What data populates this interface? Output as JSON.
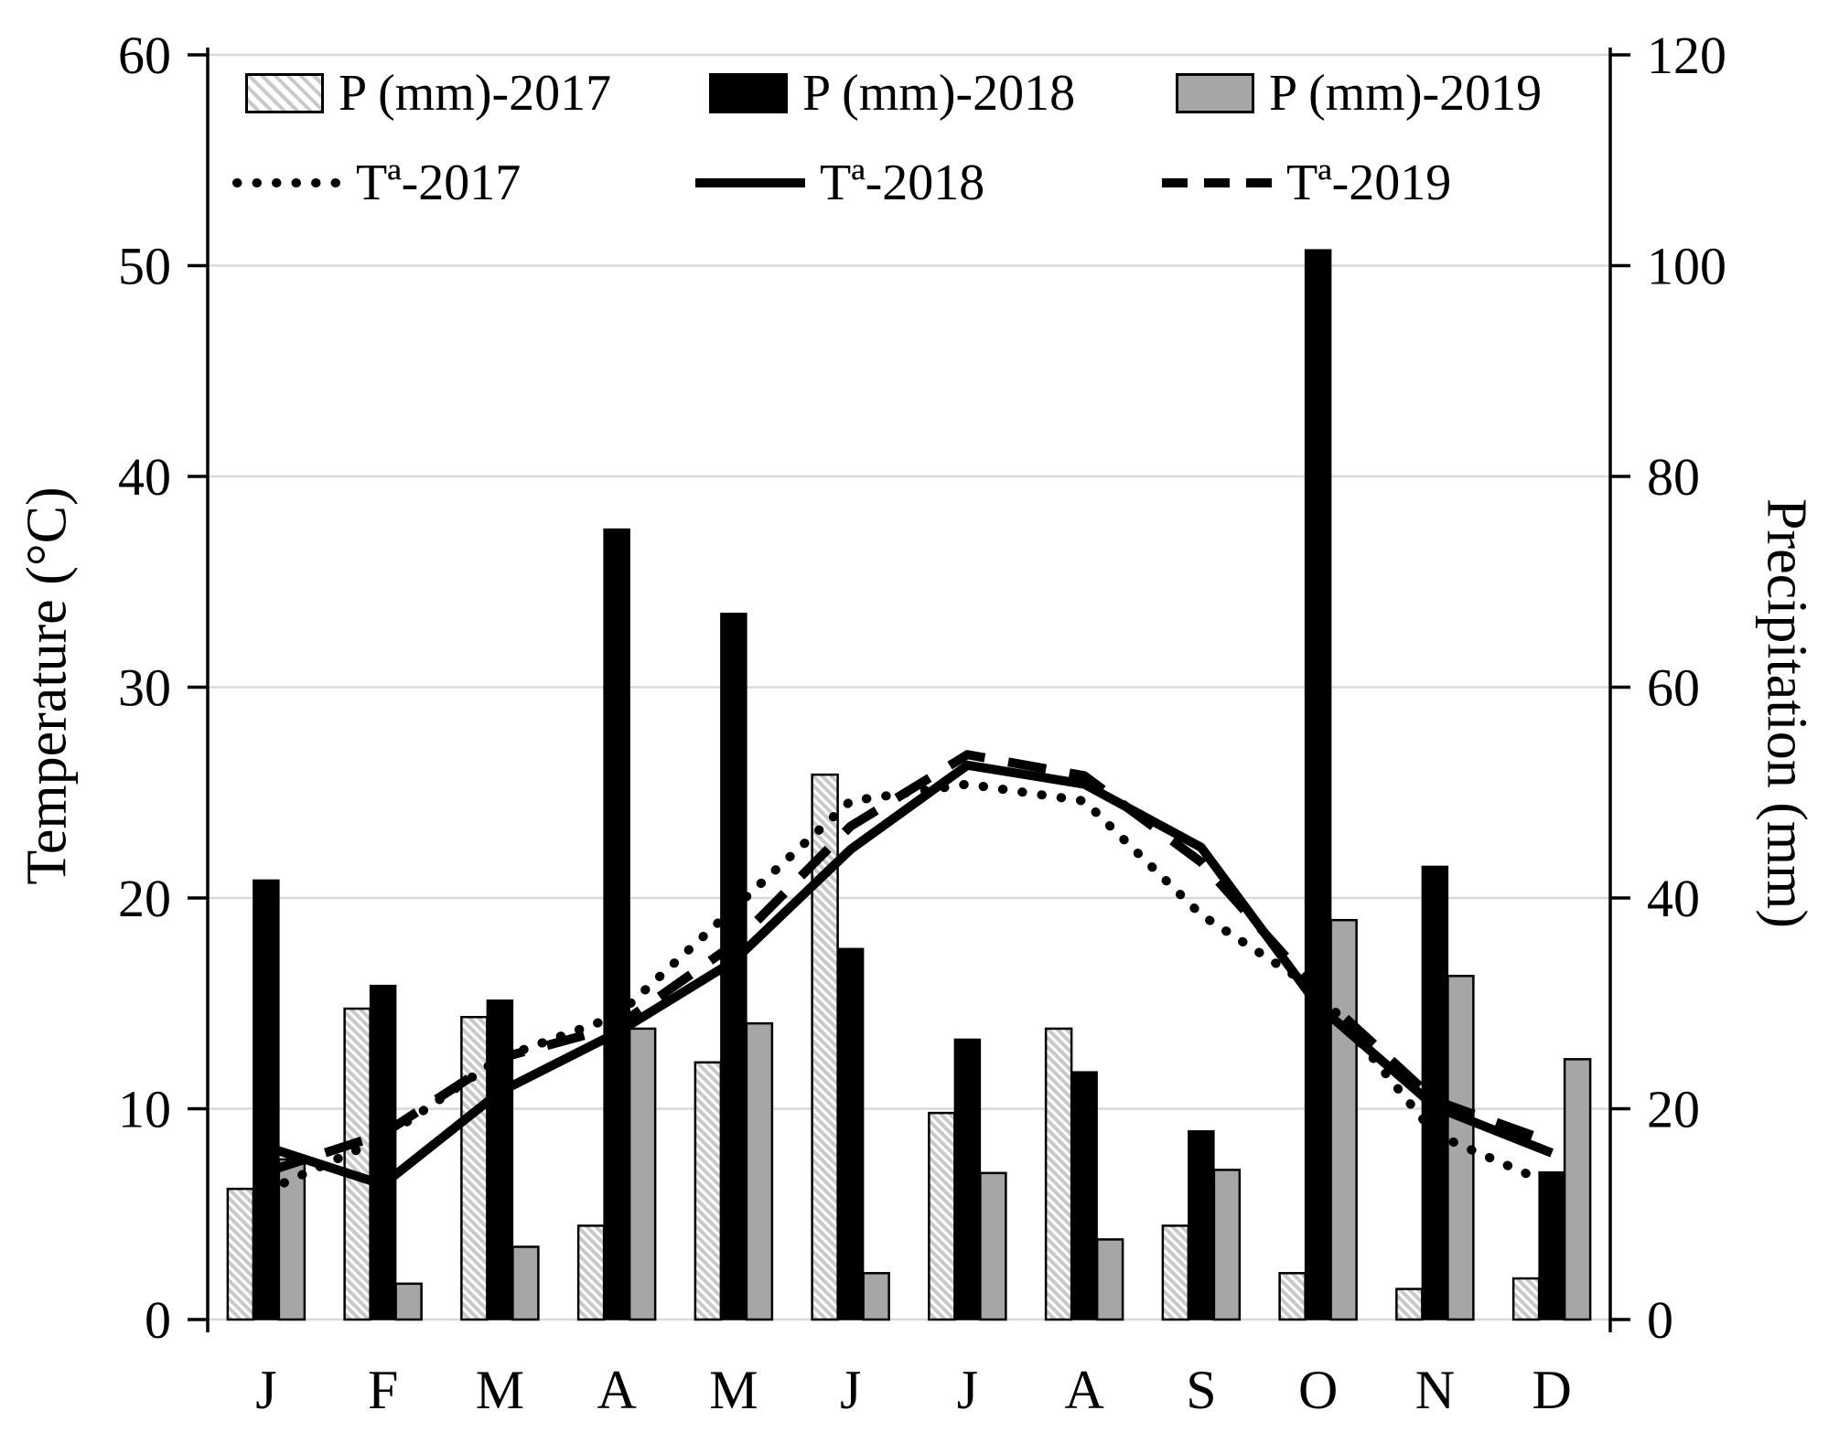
{
  "chart_data": {
    "type": "bar",
    "subtype": "combo-bar-line-dual-axis",
    "title": "",
    "categories": [
      "J",
      "F",
      "M",
      "A",
      "M",
      "J",
      "J",
      "A",
      "S",
      "O",
      "N",
      "D"
    ],
    "bar_series": [
      {
        "name": "P (mm)-2017",
        "style": "hatched",
        "axis": "right",
        "values": [
          12.4,
          29.5,
          28.7,
          8.9,
          24.4,
          51.7,
          19.6,
          27.6,
          8.9,
          4.4,
          2.9,
          3.9
        ]
      },
      {
        "name": "P (mm)-2018",
        "style": "black",
        "axis": "right",
        "values": [
          41.7,
          31.7,
          30.3,
          75.0,
          67.0,
          35.2,
          26.6,
          23.5,
          17.9,
          101.5,
          43.0,
          14.0
        ]
      },
      {
        "name": "P (mm)-2019",
        "style": "gray",
        "axis": "right",
        "values": [
          15.2,
          3.4,
          6.9,
          27.6,
          28.1,
          4.4,
          13.9,
          7.6,
          14.2,
          37.9,
          32.6,
          24.7
        ]
      }
    ],
    "line_series": [
      {
        "name": "Tª-2017",
        "style": "dotted",
        "axis": "left",
        "values": [
          6.1,
          8.6,
          12.4,
          14.4,
          19.5,
          24.6,
          25.4,
          24.6,
          19.2,
          15.6,
          8.8,
          6.4
        ]
      },
      {
        "name": "Tª-2018",
        "style": "solid",
        "axis": "left",
        "values": [
          8.2,
          6.4,
          10.8,
          13.6,
          17.0,
          22.3,
          26.3,
          25.4,
          22.4,
          14.9,
          10.1,
          7.9
        ]
      },
      {
        "name": "Tª-2019",
        "style": "dashed",
        "axis": "left",
        "values": [
          7.0,
          8.8,
          12.4,
          13.9,
          17.8,
          23.4,
          26.8,
          25.8,
          21.7,
          15.5,
          10.4,
          8.4
        ]
      }
    ],
    "left_axis": {
      "label": "Temperature (°C)",
      "min": 0,
      "max": 60,
      "step": 10,
      "ticks": [
        0,
        10,
        20,
        30,
        40,
        50,
        60
      ]
    },
    "right_axis": {
      "label": "Precipitation (mm)",
      "min": 0,
      "max": 120,
      "step": 20,
      "ticks": [
        0,
        20,
        40,
        60,
        80,
        100,
        120
      ]
    },
    "legend_position": "top",
    "grid": "horizontal",
    "colors": {
      "bar_2018": "#000000",
      "bar_2019": "#a6a6a6",
      "hatch_stripe": "#c9c9c9",
      "bar_border": "#000000",
      "gridline": "#d9d9d9",
      "axis": "#000000",
      "line": "#000000"
    }
  }
}
